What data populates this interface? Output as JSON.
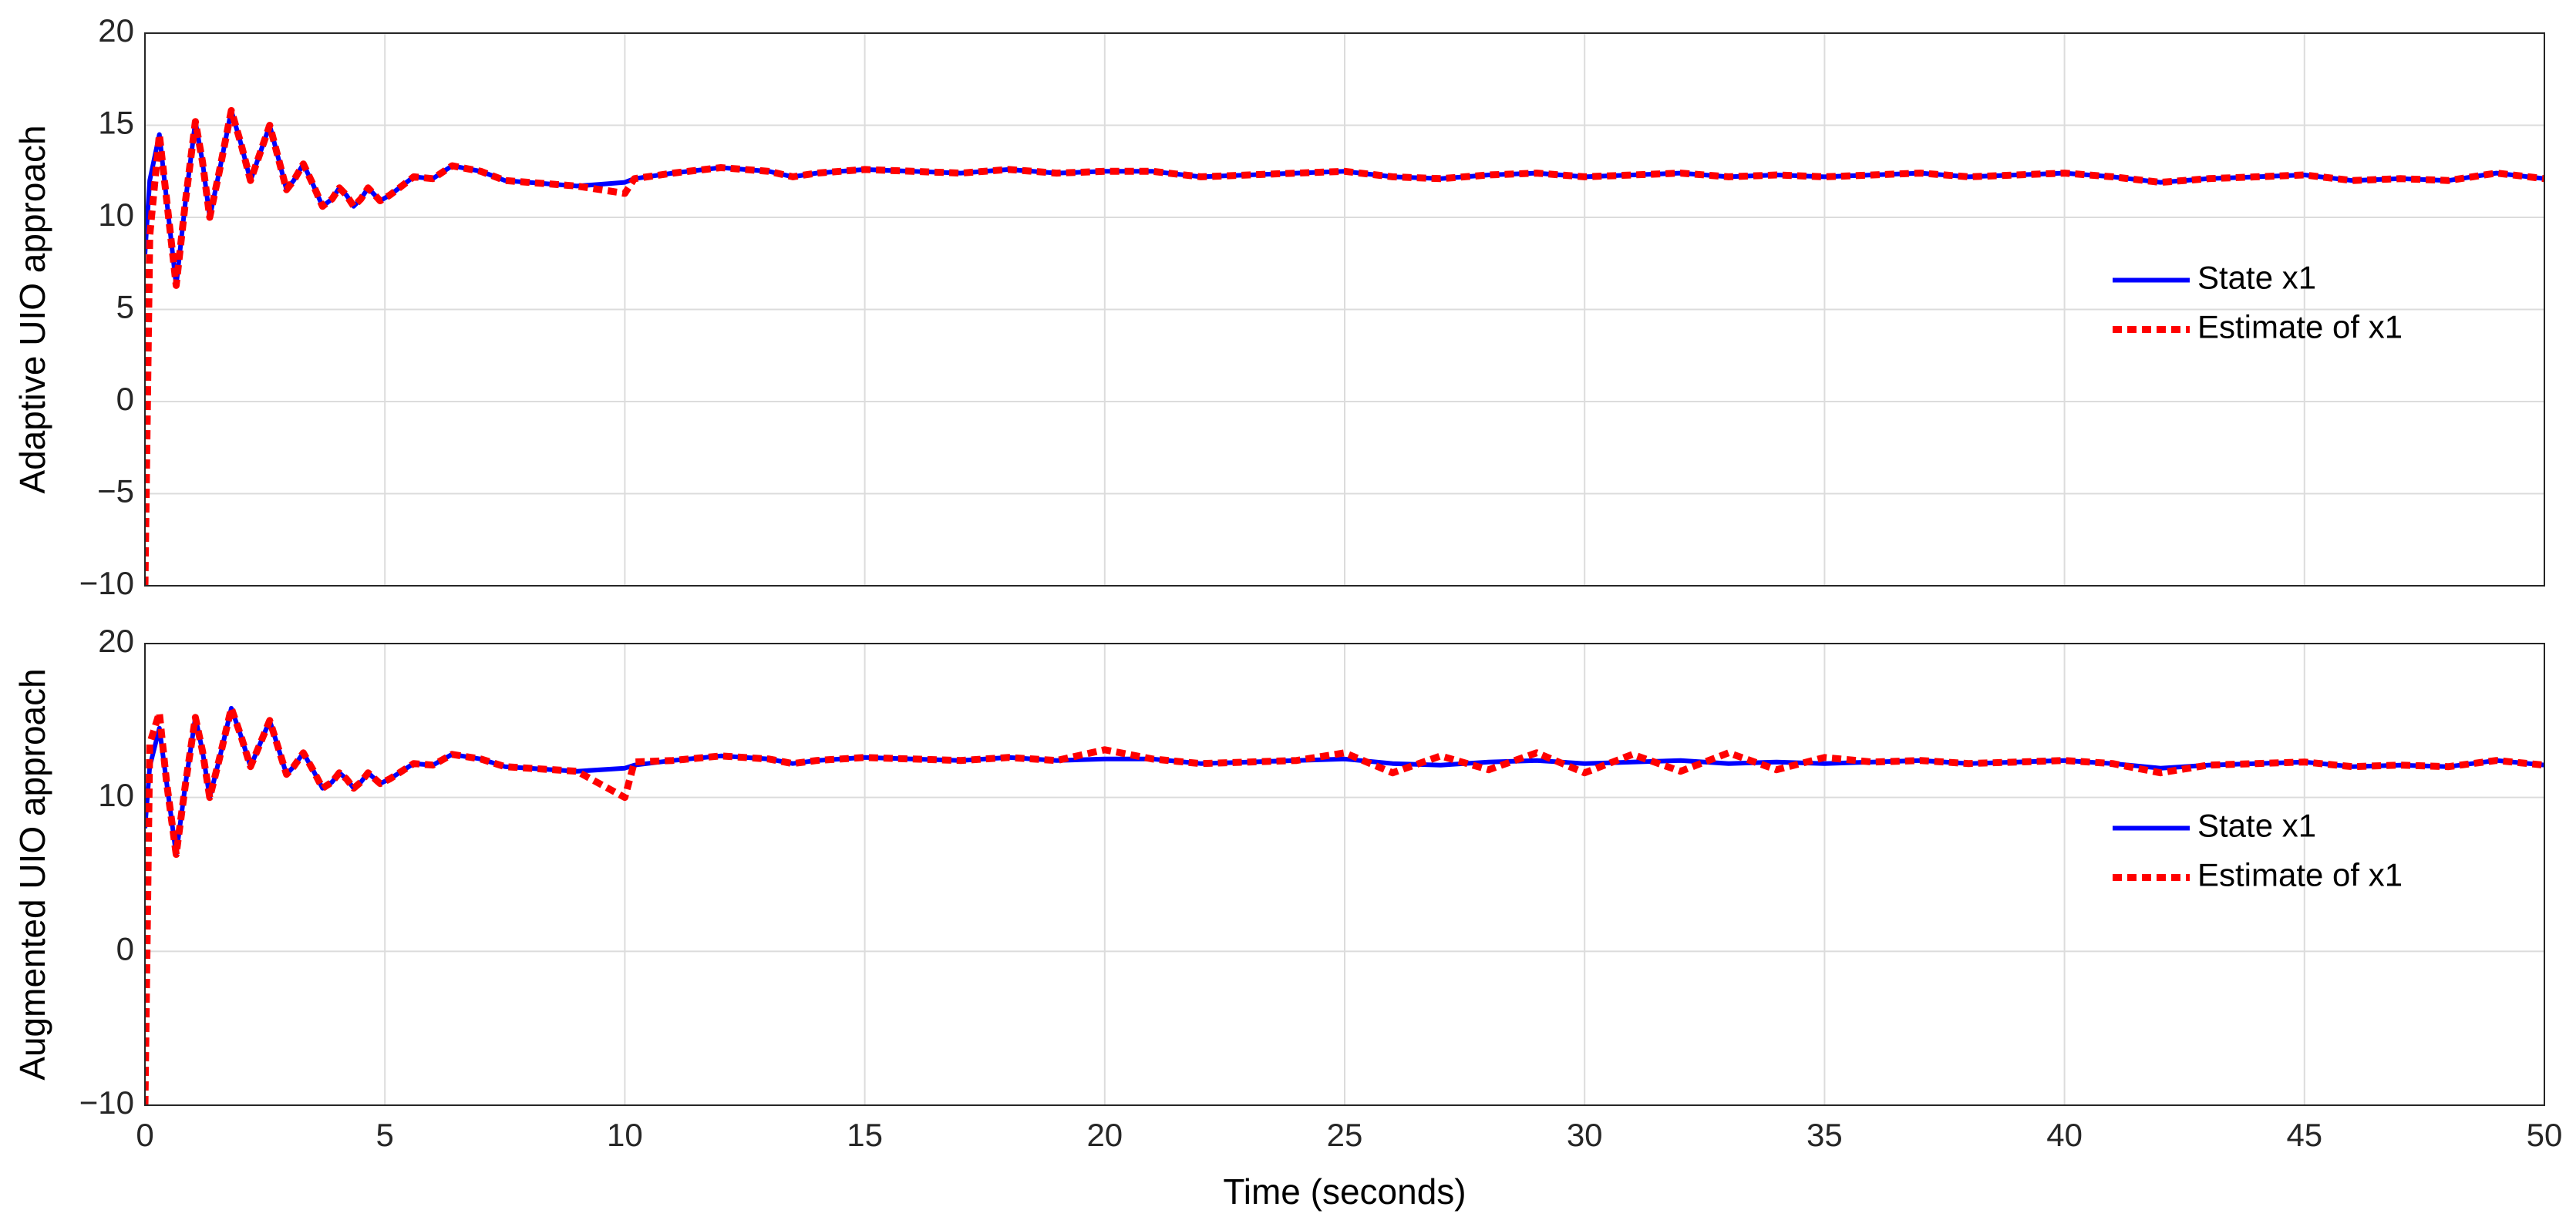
{
  "chart_data": [
    {
      "type": "line",
      "ylabel": "Adaptive UIO approach",
      "x": [
        0,
        0.1,
        0.3,
        0.45,
        0.65,
        0.85,
        1.05,
        1.2,
        1.35,
        1.55,
        1.8,
        2.0,
        2.2,
        2.4,
        2.6,
        2.8,
        2.95,
        3.1,
        3.3,
        3.5,
        3.7,
        3.9,
        4.05,
        4.2,
        4.35,
        4.5,
        4.65,
        4.9,
        5.1,
        5.3,
        5.6,
        6,
        6.4,
        7,
        7.5,
        8,
        9,
        10,
        10.2,
        11,
        12,
        13,
        13.5,
        14,
        15,
        16,
        17,
        18,
        19,
        20,
        21,
        22,
        23,
        24,
        25,
        26,
        27,
        28,
        29,
        30,
        31,
        32,
        33,
        34,
        35,
        36,
        37,
        38,
        39,
        40,
        41,
        42,
        43,
        44,
        45,
        46,
        47,
        48,
        49,
        50
      ],
      "series": [
        {
          "name": "State x1",
          "color": "#0000ff",
          "dashed": false,
          "values": [
            8,
            12,
            14.5,
            11,
            6.3,
            11,
            15.2,
            13,
            10,
            12.5,
            15.8,
            14,
            12,
            13.5,
            15,
            13,
            11.5,
            12,
            12.9,
            11.8,
            10.6,
            11,
            11.6,
            11.2,
            10.6,
            11.0,
            11.6,
            10.9,
            11.2,
            11.6,
            12.2,
            12.1,
            12.8,
            12.5,
            12,
            11.9,
            11.7,
            11.9,
            12.1,
            12.4,
            12.7,
            12.5,
            12.2,
            12.4,
            12.6,
            12.5,
            12.4,
            12.6,
            12.4,
            12.5,
            12.5,
            12.2,
            12.3,
            12.4,
            12.5,
            12.2,
            12.1,
            12.3,
            12.4,
            12.2,
            12.3,
            12.4,
            12.2,
            12.3,
            12.2,
            12.3,
            12.4,
            12.2,
            12.3,
            12.4,
            12.2,
            11.9,
            12.1,
            12.2,
            12.3,
            12.0,
            12.1,
            12.0,
            12.4,
            12.1
          ]
        },
        {
          "name": "Estimate of x1",
          "color": "#ff0000",
          "dashed": true,
          "values": [
            -10,
            9,
            14.5,
            11,
            6.3,
            11,
            15.2,
            13,
            10,
            12.5,
            15.8,
            14,
            12,
            13.5,
            15,
            13,
            11.5,
            12,
            12.9,
            11.8,
            10.6,
            11,
            11.6,
            11.2,
            10.6,
            11.0,
            11.6,
            10.9,
            11.2,
            11.6,
            12.2,
            12.1,
            12.8,
            12.5,
            12,
            11.9,
            11.7,
            11.3,
            12.1,
            12.4,
            12.7,
            12.5,
            12.2,
            12.4,
            12.6,
            12.5,
            12.4,
            12.6,
            12.4,
            12.5,
            12.5,
            12.2,
            12.3,
            12.4,
            12.5,
            12.2,
            12.1,
            12.3,
            12.4,
            12.2,
            12.3,
            12.4,
            12.2,
            12.3,
            12.2,
            12.3,
            12.4,
            12.2,
            12.3,
            12.4,
            12.2,
            11.9,
            12.1,
            12.2,
            12.3,
            12.0,
            12.1,
            12.0,
            12.4,
            12.1
          ]
        }
      ],
      "xlim": [
        0,
        50
      ],
      "xticks": [
        0,
        5,
        10,
        15,
        20,
        25,
        30,
        35,
        40,
        45,
        50
      ],
      "ylim": [
        -10,
        20
      ],
      "yticks": [
        {
          "value": -10,
          "label": "−10"
        },
        {
          "value": -5,
          "label": "−5"
        },
        0,
        5,
        10,
        15,
        20
      ],
      "grid": true,
      "legend": "right"
    },
    {
      "type": "line",
      "ylabel": "Augmented UIO approach",
      "xlabel": "Time (seconds)",
      "x": [
        0,
        0.1,
        0.3,
        0.45,
        0.65,
        0.85,
        1.05,
        1.2,
        1.35,
        1.55,
        1.8,
        2.0,
        2.2,
        2.4,
        2.6,
        2.8,
        2.95,
        3.1,
        3.3,
        3.5,
        3.7,
        3.9,
        4.05,
        4.2,
        4.35,
        4.5,
        4.65,
        4.9,
        5.1,
        5.3,
        5.6,
        6,
        6.4,
        7,
        7.5,
        8,
        9,
        10,
        10.2,
        11,
        12,
        13,
        13.5,
        14,
        15,
        16,
        17,
        18,
        19,
        20,
        21,
        22,
        23,
        24,
        25,
        26,
        27,
        28,
        29,
        30,
        31,
        32,
        33,
        34,
        35,
        36,
        37,
        38,
        39,
        40,
        41,
        42,
        43,
        44,
        45,
        46,
        47,
        48,
        49,
        50
      ],
      "series": [
        {
          "name": "State x1",
          "color": "#0000ff",
          "dashed": false,
          "values": [
            8,
            12,
            14.5,
            11,
            6.3,
            11,
            15.2,
            13,
            10,
            12.5,
            15.8,
            14,
            12,
            13.5,
            15,
            13,
            11.5,
            12,
            12.9,
            11.8,
            10.6,
            11,
            11.6,
            11.2,
            10.6,
            11.0,
            11.6,
            10.9,
            11.2,
            11.6,
            12.2,
            12.1,
            12.8,
            12.5,
            12,
            11.9,
            11.7,
            11.9,
            12.1,
            12.4,
            12.7,
            12.5,
            12.2,
            12.4,
            12.6,
            12.5,
            12.4,
            12.6,
            12.4,
            12.5,
            12.5,
            12.2,
            12.3,
            12.4,
            12.5,
            12.2,
            12.1,
            12.3,
            12.4,
            12.2,
            12.3,
            12.4,
            12.2,
            12.3,
            12.2,
            12.3,
            12.4,
            12.2,
            12.3,
            12.4,
            12.2,
            11.9,
            12.1,
            12.2,
            12.3,
            12.0,
            12.1,
            12.0,
            12.4,
            12.1
          ]
        },
        {
          "name": "Estimate of x1",
          "color": "#ff0000",
          "dashed": true,
          "values": [
            -10,
            13.5,
            15.5,
            11,
            6.3,
            11,
            15.2,
            13,
            10,
            12.5,
            15.8,
            14,
            12,
            13.5,
            15,
            13,
            11.5,
            12,
            12.9,
            11.8,
            10.6,
            11,
            11.6,
            11.2,
            10.6,
            11.0,
            11.6,
            10.9,
            11.2,
            11.6,
            12.2,
            12.1,
            12.8,
            12.5,
            12,
            11.9,
            11.7,
            10,
            12.3,
            12.4,
            12.7,
            12.5,
            12.2,
            12.4,
            12.6,
            12.5,
            12.4,
            12.6,
            12.4,
            13.1,
            12.5,
            12.2,
            12.3,
            12.4,
            12.9,
            11.6,
            12.7,
            11.8,
            12.9,
            11.6,
            12.8,
            11.7,
            12.9,
            11.8,
            12.6,
            12.3,
            12.4,
            12.2,
            12.3,
            12.4,
            12.2,
            11.6,
            12.1,
            12.2,
            12.3,
            12.0,
            12.1,
            12.0,
            12.4,
            12.1
          ]
        }
      ],
      "xlim": [
        0,
        50
      ],
      "xticks": [
        0,
        5,
        10,
        15,
        20,
        25,
        30,
        35,
        40,
        45,
        50
      ],
      "ylim": [
        -10,
        20
      ],
      "yticks": [
        {
          "value": -10,
          "label": "−10"
        },
        0,
        10,
        20
      ],
      "grid": true,
      "legend": "right"
    }
  ]
}
